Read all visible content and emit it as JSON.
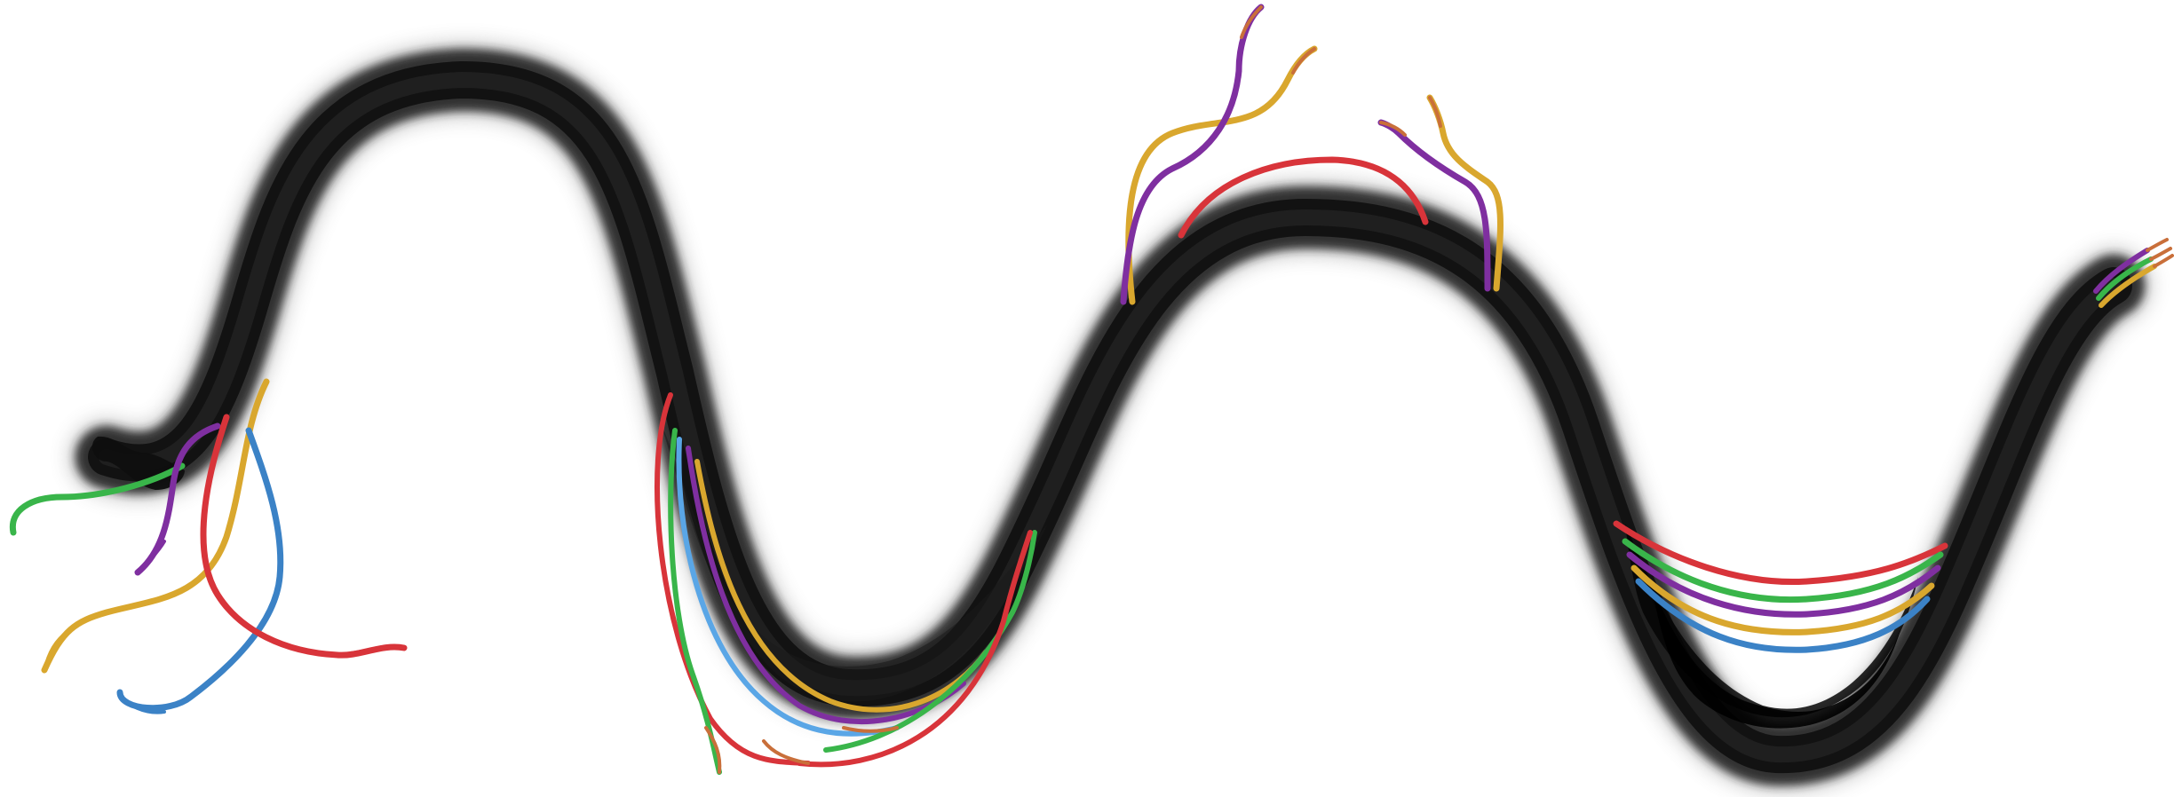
{
  "image": {
    "subject": "black-cable-with-colored-wires",
    "background_color": "#ffffff",
    "cable_colors": {
      "core": "#111111",
      "mid": "#2a2a2a",
      "edge": "#8c8c8c"
    },
    "wire_colors": {
      "red": "#d8343a",
      "green": "#39b54a",
      "blue": "#3b82c6",
      "light_blue": "#5aa6e6",
      "yellow": "#d9a72e",
      "purple": "#7f2fa0",
      "copper": "#c96f3a"
    }
  }
}
